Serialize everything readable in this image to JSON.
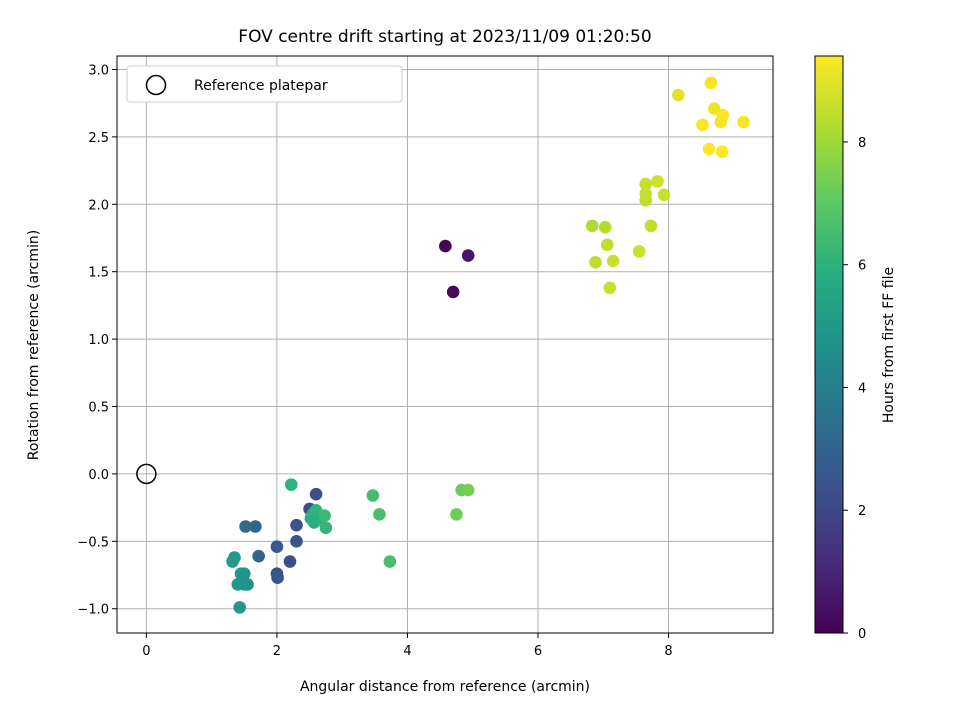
{
  "chart_data": {
    "type": "scatter",
    "title": "FOV centre drift starting at 2023/11/09 01:20:50",
    "xlabel": "Angular distance from reference (arcmin)",
    "ylabel": "Rotation from reference (arcmin)",
    "xlim": [
      -0.45,
      9.6
    ],
    "ylim": [
      -1.18,
      3.1
    ],
    "xticks": [
      "0",
      "2",
      "4",
      "6",
      "8"
    ],
    "xtick_values": [
      0,
      2,
      4,
      6,
      8
    ],
    "yticks": [
      "−1.0",
      "−0.5",
      "0.0",
      "0.5",
      "1.0",
      "1.5",
      "2.0",
      "2.5",
      "3.0"
    ],
    "ytick_values": [
      -1.0,
      -0.5,
      0.0,
      0.5,
      1.0,
      1.5,
      2.0,
      2.5,
      3.0
    ],
    "grid": true,
    "legend": {
      "position": "top-left",
      "entries": [
        "Reference platepar"
      ]
    },
    "reference_point": {
      "x": 0,
      "y": 0
    },
    "colorbar": {
      "label": "Hours from first FF file",
      "range": [
        0,
        9.4
      ],
      "colormap": "viridis",
      "ticks": [
        "0",
        "2",
        "4",
        "6",
        "8"
      ],
      "tick_values": [
        0,
        2,
        4,
        6,
        8
      ]
    },
    "points": [
      {
        "x": 4.58,
        "y": 1.69,
        "c": 0.1
      },
      {
        "x": 4.7,
        "y": 1.35,
        "c": 0.2
      },
      {
        "x": 4.93,
        "y": 1.62,
        "c": 0.6
      },
      {
        "x": 2.6,
        "y": -0.15,
        "c": 2.3
      },
      {
        "x": 2.5,
        "y": -0.26,
        "c": 2.2
      },
      {
        "x": 2.3,
        "y": -0.38,
        "c": 2.4
      },
      {
        "x": 2.3,
        "y": -0.5,
        "c": 2.5
      },
      {
        "x": 2.2,
        "y": -0.65,
        "c": 2.2
      },
      {
        "x": 2.0,
        "y": -0.54,
        "c": 2.6
      },
      {
        "x": 2.0,
        "y": -0.74,
        "c": 2.3
      },
      {
        "x": 2.01,
        "y": -0.77,
        "c": 2.5
      },
      {
        "x": 1.72,
        "y": -0.61,
        "c": 3.0
      },
      {
        "x": 1.67,
        "y": -0.39,
        "c": 3.0
      },
      {
        "x": 1.52,
        "y": -0.39,
        "c": 3.2
      },
      {
        "x": 1.35,
        "y": -0.62,
        "c": 5.0
      },
      {
        "x": 1.32,
        "y": -0.65,
        "c": 5.1
      },
      {
        "x": 1.45,
        "y": -0.74,
        "c": 4.9
      },
      {
        "x": 1.5,
        "y": -0.74,
        "c": 4.8
      },
      {
        "x": 1.4,
        "y": -0.82,
        "c": 5.0
      },
      {
        "x": 1.5,
        "y": -0.82,
        "c": 4.9
      },
      {
        "x": 1.55,
        "y": -0.82,
        "c": 4.8
      },
      {
        "x": 1.43,
        "y": -0.99,
        "c": 5.0
      },
      {
        "x": 2.22,
        "y": -0.08,
        "c": 6.0
      },
      {
        "x": 2.52,
        "y": -0.33,
        "c": 5.7
      },
      {
        "x": 2.55,
        "y": -0.3,
        "c": 6.0
      },
      {
        "x": 2.57,
        "y": -0.36,
        "c": 5.9
      },
      {
        "x": 2.6,
        "y": -0.27,
        "c": 6.1
      },
      {
        "x": 2.65,
        "y": -0.33,
        "c": 6.0
      },
      {
        "x": 2.73,
        "y": -0.31,
        "c": 6.3
      },
      {
        "x": 2.75,
        "y": -0.4,
        "c": 6.2
      },
      {
        "x": 3.47,
        "y": -0.16,
        "c": 6.5
      },
      {
        "x": 3.57,
        "y": -0.3,
        "c": 6.6
      },
      {
        "x": 3.73,
        "y": -0.65,
        "c": 6.6
      },
      {
        "x": 4.75,
        "y": -0.3,
        "c": 7.3
      },
      {
        "x": 4.83,
        "y": -0.12,
        "c": 7.2
      },
      {
        "x": 4.93,
        "y": -0.12,
        "c": 7.4
      },
      {
        "x": 6.83,
        "y": 1.84,
        "c": 8.2
      },
      {
        "x": 7.03,
        "y": 1.83,
        "c": 8.3
      },
      {
        "x": 7.06,
        "y": 1.7,
        "c": 8.5
      },
      {
        "x": 6.88,
        "y": 1.57,
        "c": 8.5
      },
      {
        "x": 7.15,
        "y": 1.58,
        "c": 8.6
      },
      {
        "x": 7.1,
        "y": 1.38,
        "c": 8.6
      },
      {
        "x": 7.55,
        "y": 1.65,
        "c": 8.6
      },
      {
        "x": 7.73,
        "y": 1.84,
        "c": 8.5
      },
      {
        "x": 7.65,
        "y": 2.03,
        "c": 8.5
      },
      {
        "x": 7.65,
        "y": 2.08,
        "c": 8.6
      },
      {
        "x": 7.65,
        "y": 2.15,
        "c": 8.6
      },
      {
        "x": 7.83,
        "y": 2.17,
        "c": 8.7
      },
      {
        "x": 7.93,
        "y": 2.07,
        "c": 8.6
      },
      {
        "x": 8.15,
        "y": 2.81,
        "c": 9.0
      },
      {
        "x": 8.65,
        "y": 2.9,
        "c": 9.3
      },
      {
        "x": 8.7,
        "y": 2.71,
        "c": 9.2
      },
      {
        "x": 8.83,
        "y": 2.66,
        "c": 9.3
      },
      {
        "x": 8.8,
        "y": 2.61,
        "c": 9.3
      },
      {
        "x": 8.52,
        "y": 2.59,
        "c": 9.3
      },
      {
        "x": 9.15,
        "y": 2.61,
        "c": 9.3
      },
      {
        "x": 8.62,
        "y": 2.41,
        "c": 9.4
      },
      {
        "x": 8.82,
        "y": 2.39,
        "c": 9.4
      }
    ]
  }
}
